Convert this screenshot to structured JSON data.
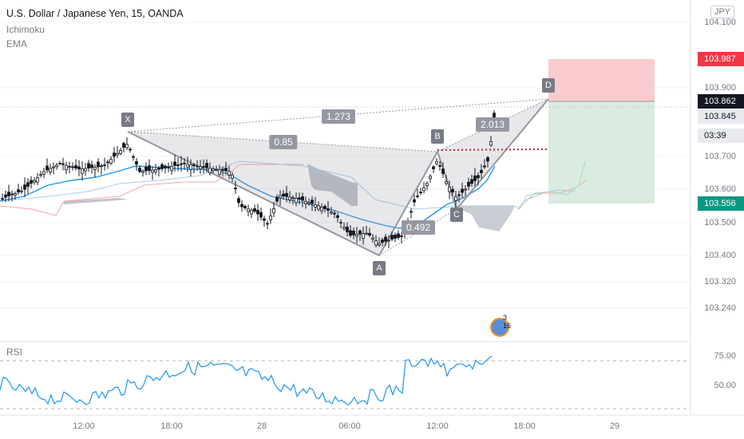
{
  "header": {
    "title": "U.S. Dollar / Japanese Yen, 15, OANDA",
    "indicator1": "Ichimoku",
    "indicator2": "EMA"
  },
  "currency_badge": "JPY",
  "price_axis": {
    "labels": [
      "104.100",
      "103.900",
      "103.700",
      "103.600",
      "103.500",
      "103.400",
      "103.320",
      "103.240"
    ],
    "tags": {
      "stop": "103.987",
      "last": "103.862",
      "prev": "103.845",
      "countdown": "03:39",
      "target": "103.556"
    }
  },
  "rsi": {
    "label": "RSI",
    "axis": [
      "75.00",
      "50.00"
    ]
  },
  "time_axis": [
    "12:00",
    "18:00",
    "28",
    "06:00",
    "12:00",
    "18:00",
    "29"
  ],
  "pattern": {
    "points": [
      "X",
      "A",
      "B",
      "C",
      "D"
    ],
    "ratios": {
      "xb": "0.85",
      "xd": "1.273",
      "ac": "0.492",
      "bd": "2.013"
    }
  },
  "event": {
    "count": "3 16"
  },
  "colors": {
    "up": "#131722",
    "down": "#131722",
    "ema": "#2196f3",
    "cloud": "#9598a1",
    "stop_zone": "#f9c5c9",
    "target_zone": "#d1e8d6"
  }
}
